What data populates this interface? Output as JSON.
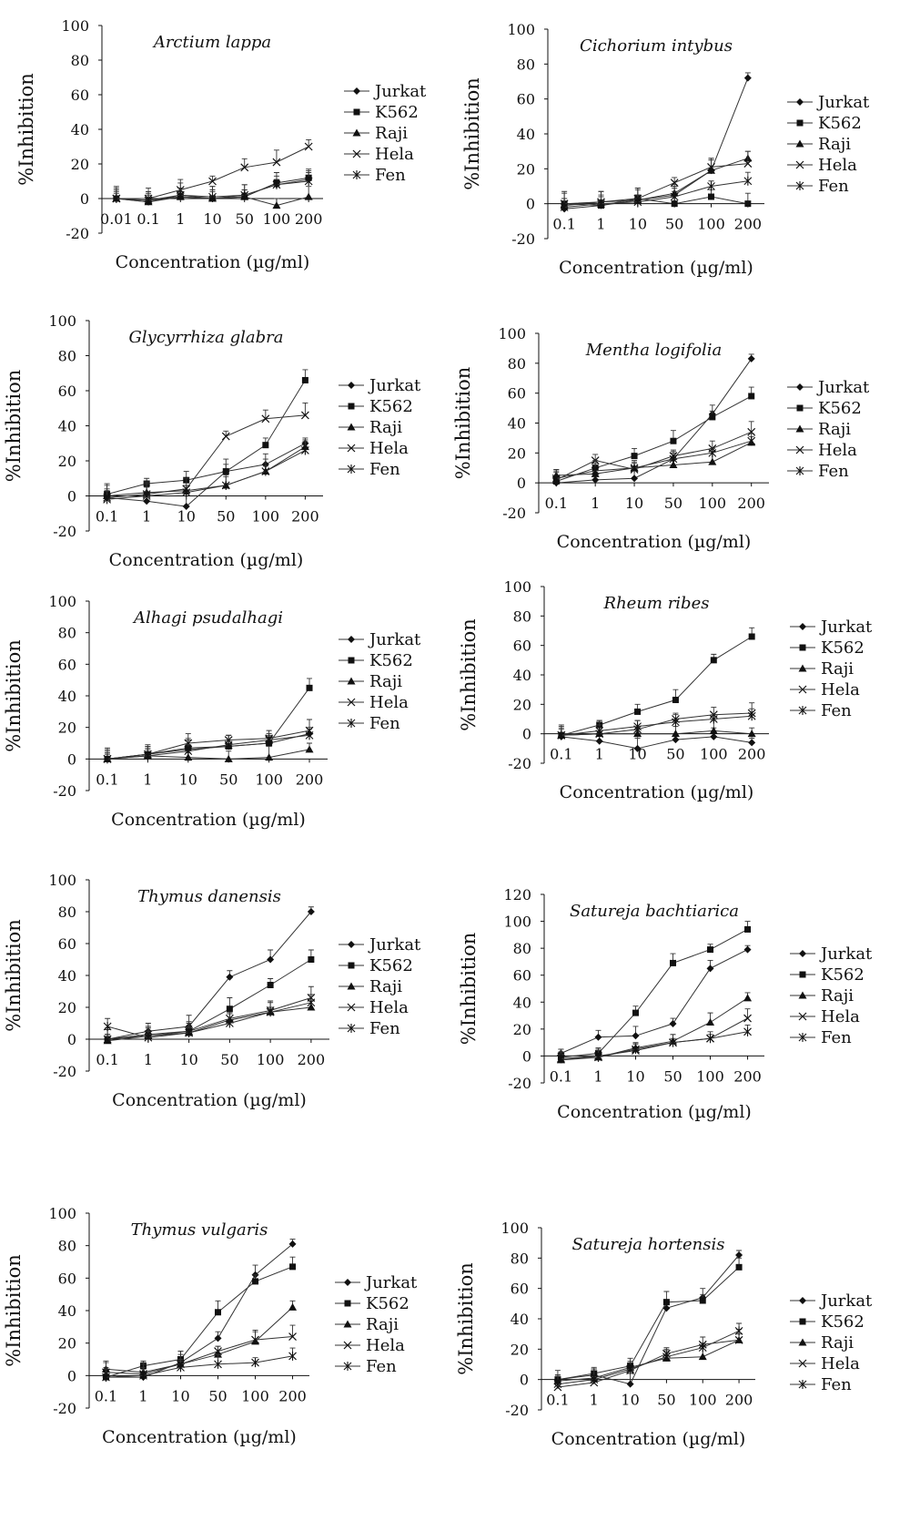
{
  "chart_data": [
    {
      "type": "line",
      "title": "Arctium lappa",
      "xlabel": "Concentration (µg/ml)",
      "ylabel": "%Inhibition",
      "x": [
        "0.01",
        "0.1",
        "1",
        "10",
        "50",
        "100",
        "200"
      ],
      "ylim": [
        -20,
        100
      ],
      "yticks": [
        "-20",
        "0",
        "20",
        "40",
        "60",
        "80",
        "100"
      ],
      "series": [
        {
          "name": "Jurkat",
          "values": [
            0,
            -2,
            2,
            0,
            2,
            8,
            11
          ]
        },
        {
          "name": "K562",
          "values": [
            0,
            -1,
            1,
            0,
            1,
            9,
            12
          ]
        },
        {
          "name": "Raji",
          "values": [
            0,
            -2,
            1,
            0,
            1,
            -4,
            1
          ]
        },
        {
          "name": "Hela",
          "values": [
            0,
            0,
            5,
            10,
            18,
            21,
            30
          ]
        },
        {
          "name": "Fen",
          "values": [
            0,
            -1,
            2,
            1,
            2,
            8,
            10
          ]
        }
      ]
    },
    {
      "type": "line",
      "title": "Cichorium intybus",
      "xlabel": "Concentration (µg/ml)",
      "ylabel": "%Inhibition",
      "x": [
        "0.1",
        "1",
        "10",
        "50",
        "100",
        "200"
      ],
      "ylim": [
        -20,
        100
      ],
      "yticks": [
        "-20",
        "0",
        "20",
        "40",
        "60",
        "80",
        "100"
      ],
      "series": [
        {
          "name": "Jurkat",
          "values": [
            -3,
            -1,
            2,
            5,
            19,
            72
          ]
        },
        {
          "name": "K562",
          "values": [
            0,
            -1,
            3,
            0,
            4,
            0
          ]
        },
        {
          "name": "Raji",
          "values": [
            -1,
            1,
            2,
            6,
            19,
            26
          ]
        },
        {
          "name": "Hela",
          "values": [
            0,
            1,
            3,
            12,
            21,
            23
          ]
        },
        {
          "name": "Fen",
          "values": [
            -2,
            0,
            1,
            4,
            10,
            13
          ]
        }
      ]
    },
    {
      "type": "line",
      "title": "Glycyrrhiza glabra",
      "xlabel": "Concentration (µg/ml)",
      "ylabel": "%Inhibition",
      "x": [
        "0.1",
        "1",
        "10",
        "50",
        "100",
        "200"
      ],
      "ylim": [
        -20,
        100
      ],
      "yticks": [
        "-20",
        "0",
        "20",
        "40",
        "60",
        "80",
        "100"
      ],
      "series": [
        {
          "name": "Jurkat",
          "values": [
            -1,
            -3,
            -6,
            14,
            18,
            30
          ]
        },
        {
          "name": "K562",
          "values": [
            1,
            7,
            9,
            14,
            29,
            66
          ]
        },
        {
          "name": "Raji",
          "values": [
            0,
            2,
            3,
            6,
            14,
            28
          ]
        },
        {
          "name": "Hela",
          "values": [
            -1,
            1,
            4,
            34,
            44,
            46
          ]
        },
        {
          "name": "Fen",
          "values": [
            -2,
            0,
            2,
            6,
            14,
            26
          ]
        }
      ]
    },
    {
      "type": "line",
      "title": "Mentha logifolia",
      "xlabel": "Concentration (µg/ml)",
      "ylabel": "%Inhibition",
      "x": [
        "0.1",
        "1",
        "10",
        "50",
        "100",
        "200"
      ],
      "ylim": [
        -20,
        100
      ],
      "yticks": [
        "-20",
        "0",
        "20",
        "40",
        "60",
        "80",
        "100"
      ],
      "series": [
        {
          "name": "Jurkat",
          "values": [
            0,
            2,
            3,
            16,
            46,
            83
          ]
        },
        {
          "name": "K562",
          "values": [
            1,
            10,
            18,
            28,
            44,
            58
          ]
        },
        {
          "name": "Raji",
          "values": [
            5,
            6,
            10,
            12,
            14,
            27
          ]
        },
        {
          "name": "Hela",
          "values": [
            2,
            15,
            9,
            18,
            23,
            34
          ]
        },
        {
          "name": "Fen",
          "values": [
            3,
            8,
            10,
            16,
            20,
            28
          ]
        }
      ]
    },
    {
      "type": "line",
      "title": "Alhagi psudalhagi",
      "xlabel": "Concentration (µg/ml)",
      "ylabel": "%Inhibition",
      "x": [
        "0.1",
        "1",
        "10",
        "50",
        "100",
        "200"
      ],
      "ylim": [
        -20,
        100
      ],
      "yticks": [
        "-20",
        "0",
        "20",
        "40",
        "60",
        "80",
        "100"
      ],
      "series": [
        {
          "name": "Jurkat",
          "values": [
            0,
            3,
            6,
            8,
            10,
            16
          ]
        },
        {
          "name": "K562",
          "values": [
            0,
            3,
            7,
            8,
            10,
            45
          ]
        },
        {
          "name": "Raji",
          "values": [
            0,
            2,
            1,
            0,
            1,
            6
          ]
        },
        {
          "name": "Hela",
          "values": [
            0,
            3,
            10,
            12,
            13,
            18
          ]
        },
        {
          "name": "Fen",
          "values": [
            0,
            2,
            5,
            9,
            12,
            15
          ]
        }
      ]
    },
    {
      "type": "line",
      "title": "Rheum ribes",
      "xlabel": "Concentration (µg/ml)",
      "ylabel": "%Inhibition",
      "x": [
        "0.1",
        "1",
        "10",
        "50",
        "100",
        "200"
      ],
      "ylim": [
        -20,
        100
      ],
      "yticks": [
        "-20",
        "0",
        "20",
        "40",
        "60",
        "80",
        "100"
      ],
      "series": [
        {
          "name": "Jurkat",
          "values": [
            -2,
            -5,
            -10,
            -4,
            -2,
            -6
          ]
        },
        {
          "name": "K562",
          "values": [
            -1,
            6,
            15,
            23,
            50,
            66
          ]
        },
        {
          "name": "Raji",
          "values": [
            -1,
            0,
            0,
            0,
            2,
            0
          ]
        },
        {
          "name": "Hela",
          "values": [
            -1,
            0,
            3,
            10,
            13,
            14
          ]
        },
        {
          "name": "Fen",
          "values": [
            -1,
            2,
            5,
            8,
            10,
            12
          ]
        }
      ]
    },
    {
      "type": "line",
      "title": "Thymus danensis",
      "xlabel": "Concentration (µg/ml)",
      "ylabel": "%Inhibition",
      "x": [
        "0.1",
        "1",
        "10",
        "50",
        "100",
        "200"
      ],
      "ylim": [
        -20,
        100
      ],
      "yticks": [
        "-20",
        "0",
        "20",
        "40",
        "60",
        "80",
        "100"
      ],
      "series": [
        {
          "name": "Jurkat",
          "values": [
            0,
            5,
            8,
            39,
            50,
            80
          ]
        },
        {
          "name": "K562",
          "values": [
            0,
            2,
            5,
            19,
            34,
            50
          ]
        },
        {
          "name": "Raji",
          "values": [
            -1,
            2,
            4,
            12,
            17,
            20
          ]
        },
        {
          "name": "Hela",
          "values": [
            0,
            3,
            5,
            13,
            18,
            26
          ]
        },
        {
          "name": "Fen",
          "values": [
            8,
            1,
            4,
            10,
            17,
            23
          ]
        }
      ]
    },
    {
      "type": "line",
      "title": "Satureja bachtiarica",
      "xlabel": "Concentration (µg/ml)",
      "ylabel": "%Inhibition",
      "x": [
        "0.1",
        "1",
        "10",
        "50",
        "100",
        "200"
      ],
      "ylim": [
        -20,
        120
      ],
      "yticks": [
        "-20",
        "0",
        "20",
        "40",
        "60",
        "80",
        "100",
        "120"
      ],
      "series": [
        {
          "name": "Jurkat",
          "values": [
            2,
            14,
            15,
            24,
            65,
            79
          ]
        },
        {
          "name": "K562",
          "values": [
            -1,
            2,
            32,
            69,
            79,
            94
          ]
        },
        {
          "name": "Raji",
          "values": [
            -3,
            -1,
            6,
            11,
            25,
            43
          ]
        },
        {
          "name": "Hela",
          "values": [
            -2,
            0,
            4,
            10,
            13,
            28
          ]
        },
        {
          "name": "Fen",
          "values": [
            -2,
            -1,
            5,
            10,
            13,
            18
          ]
        }
      ]
    },
    {
      "type": "line",
      "title": "Thymus vulgaris",
      "xlabel": "Concentration (µg/ml)",
      "ylabel": "%Inhibition",
      "x": [
        "0.1",
        "1",
        "10",
        "50",
        "100",
        "200"
      ],
      "ylim": [
        -20,
        100
      ],
      "yticks": [
        "-20",
        "0",
        "20",
        "40",
        "60",
        "80",
        "100"
      ],
      "series": [
        {
          "name": "Jurkat",
          "values": [
            -1,
            -1,
            8,
            23,
            62,
            81
          ]
        },
        {
          "name": "K562",
          "values": [
            -1,
            6,
            10,
            39,
            58,
            67
          ]
        },
        {
          "name": "Raji",
          "values": [
            4,
            2,
            7,
            13,
            21,
            42
          ]
        },
        {
          "name": "Hela",
          "values": [
            2,
            1,
            7,
            15,
            22,
            24
          ]
        },
        {
          "name": "Fen",
          "values": [
            -1,
            0,
            5,
            7,
            8,
            12
          ]
        }
      ]
    },
    {
      "type": "line",
      "title": "Satureja hortensis",
      "xlabel": "Concentration (µg/ml)",
      "ylabel": "%Inhibition",
      "x": [
        "0.1",
        "1",
        "10",
        "50",
        "100",
        "200"
      ],
      "ylim": [
        -20,
        100
      ],
      "yticks": [
        "-20",
        "0",
        "20",
        "40",
        "60",
        "80",
        "100"
      ],
      "series": [
        {
          "name": "Jurkat",
          "values": [
            0,
            3,
            -3,
            47,
            54,
            82
          ]
        },
        {
          "name": "K562",
          "values": [
            0,
            4,
            9,
            51,
            52,
            74
          ]
        },
        {
          "name": "Raji",
          "values": [
            -1,
            1,
            8,
            14,
            15,
            26
          ]
        },
        {
          "name": "Hela",
          "values": [
            -5,
            -2,
            6,
            17,
            23,
            26
          ]
        },
        {
          "name": "Fen",
          "values": [
            -3,
            0,
            7,
            15,
            21,
            32
          ]
        }
      ]
    }
  ]
}
